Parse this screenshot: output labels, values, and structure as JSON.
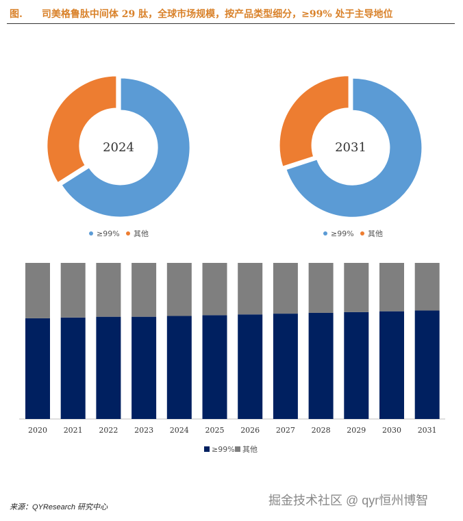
{
  "header": {
    "title": "图.　　司美格鲁肽中间体 29 肽，全球市场规模，按产品类型细分，≥99% 处于主导地位"
  },
  "footer": {
    "source": "来源：QYResearch 研究中心",
    "watermark": "掘金技术社区 @ qyr恒州博智"
  },
  "colors": {
    "pie_main": "#5b9bd5",
    "pie_other": "#ed7d31",
    "bar_main": "#002060",
    "bar_other": "#7f7f7f"
  },
  "chart_data": [
    {
      "type": "pie",
      "center_label": "2024",
      "labels": [
        "≥99%",
        "其他"
      ],
      "values": [
        66,
        34
      ]
    },
    {
      "type": "pie",
      "center_label": "2031",
      "labels": [
        "≥99%",
        "其他"
      ],
      "values": [
        70,
        30
      ]
    },
    {
      "type": "bar",
      "stacked": true,
      "categories": [
        "2020",
        "2021",
        "2022",
        "2023",
        "2024",
        "2025",
        "2026",
        "2027",
        "2028",
        "2029",
        "2030",
        "2031"
      ],
      "series": [
        {
          "name": "≥99%",
          "values": [
            64.5,
            65,
            65.5,
            65.5,
            66,
            66.5,
            67,
            67.5,
            68,
            68.5,
            69,
            69.5
          ]
        },
        {
          "name": "其他",
          "values": [
            35.5,
            35,
            34.5,
            34.5,
            34,
            33.5,
            33,
            32.5,
            32,
            31.5,
            31,
            30.5
          ]
        }
      ],
      "ylim": [
        0,
        100
      ],
      "legend": "bottom"
    }
  ]
}
